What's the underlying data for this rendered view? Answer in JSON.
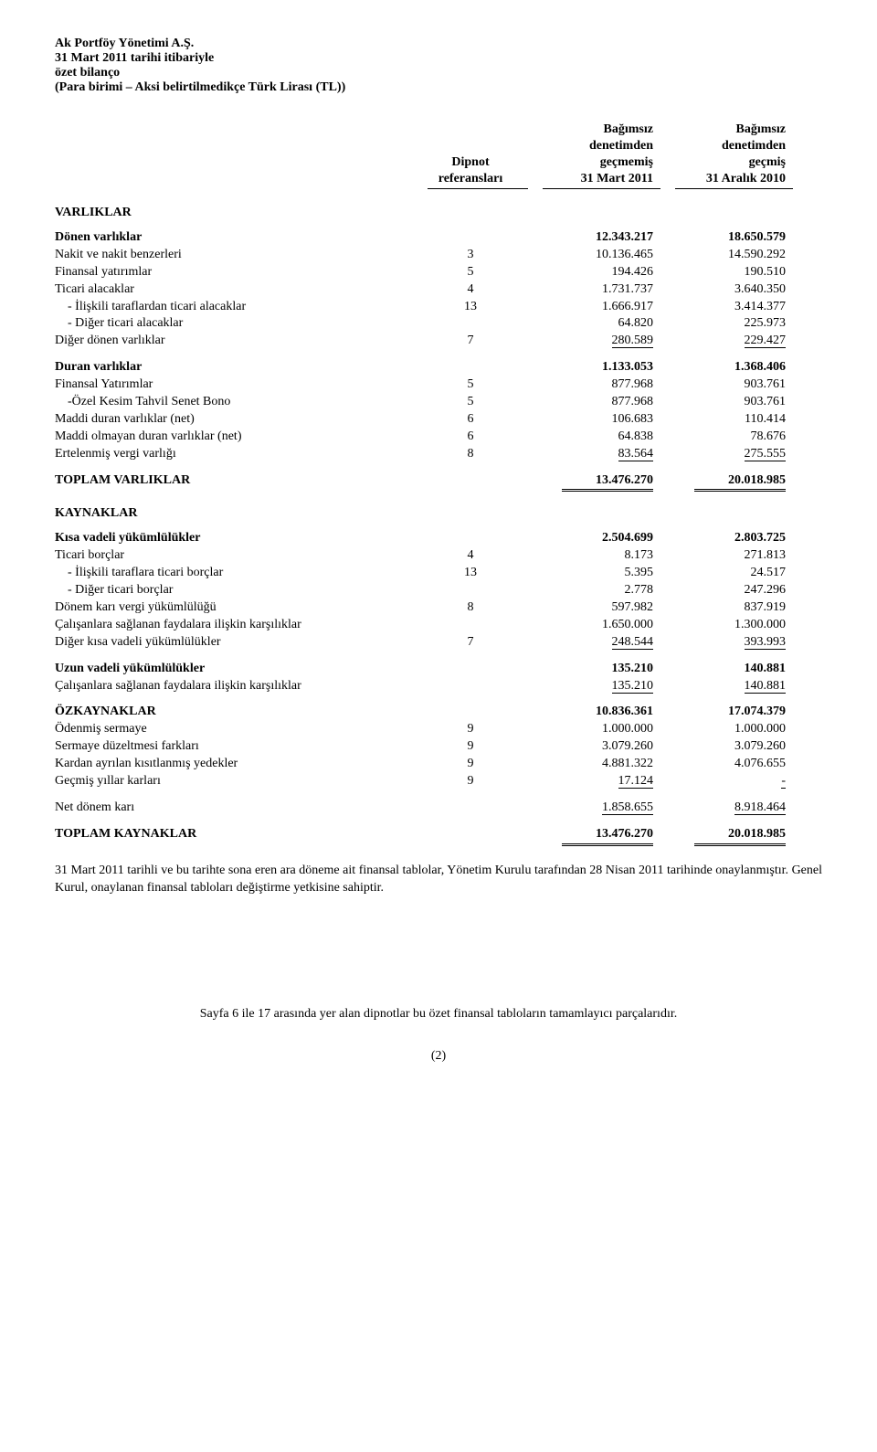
{
  "header": {
    "company": "Ak Portföy Yönetimi A.Ş.",
    "line2": "31 Mart 2011 tarihi itibariyle",
    "line3": "özet bilanço",
    "line4": "(Para birimi – Aksi belirtilmedikçe Türk Lirası (TL))"
  },
  "cols": {
    "note": "Dipnot\nreferansları",
    "c1a": "Bağımsız",
    "c1b": "denetimden",
    "c1c": "geçmemiş",
    "c1d": "31 Mart 2011",
    "c2a": "Bağımsız",
    "c2b": "denetimden",
    "c2c": "geçmiş",
    "c2d": "31 Aralık 2010"
  },
  "varliklar_title": "VARLIKLAR",
  "donen": {
    "title": "Dönen varlıklar",
    "title_v1": "12.343.217",
    "title_v2": "18.650.579",
    "rows": [
      {
        "label": "Nakit ve nakit benzerleri",
        "note": "3",
        "v1": "10.136.465",
        "v2": "14.590.292"
      },
      {
        "label": "Finansal yatırımlar",
        "note": "5",
        "v1": "194.426",
        "v2": "190.510"
      },
      {
        "label": "Ticari alacaklar",
        "note": "4",
        "v1": "1.731.737",
        "v2": "3.640.350"
      },
      {
        "label": "- İlişkili taraflardan ticari alacaklar",
        "indent": true,
        "note": "13",
        "v1": "1.666.917",
        "v2": "3.414.377"
      },
      {
        "label": "- Diğer ticari alacaklar",
        "indent": true,
        "note": "",
        "v1": "64.820",
        "v2": "225.973"
      },
      {
        "label": "Diğer dönen varlıklar",
        "note": "7",
        "v1": "280.589",
        "v2": "229.427",
        "underline": true
      }
    ]
  },
  "duran": {
    "title": "Duran varlıklar",
    "title_v1": "1.133.053",
    "title_v2": "1.368.406",
    "rows": [
      {
        "label": "Finansal Yatırımlar",
        "note": "5",
        "v1": "877.968",
        "v2": "903.761"
      },
      {
        "label": "-Özel Kesim Tahvil Senet Bono",
        "indent": true,
        "note": "5",
        "v1": "877.968",
        "v2": "903.761"
      },
      {
        "label": "Maddi duran varlıklar (net)",
        "note": "6",
        "v1": "106.683",
        "v2": "110.414"
      },
      {
        "label": "Maddi olmayan duran varlıklar (net)",
        "note": "6",
        "v1": "64.838",
        "v2": "78.676"
      },
      {
        "label": "Ertelenmiş vergi varlığı",
        "note": "8",
        "v1": "83.564",
        "v2": "275.555",
        "underline": true
      }
    ]
  },
  "toplam_varliklar": {
    "label": "TOPLAM VARLIKLAR",
    "v1": "13.476.270",
    "v2": "20.018.985"
  },
  "kaynaklar_title": "KAYNAKLAR",
  "kisa": {
    "title": "Kısa vadeli yükümlülükler",
    "title_v1": "2.504.699",
    "title_v2": "2.803.725",
    "rows": [
      {
        "label": "Ticari borçlar",
        "note": "4",
        "v1": "8.173",
        "v2": "271.813"
      },
      {
        "label": "- İlişkili taraflara ticari borçlar",
        "indent": true,
        "note": "13",
        "v1": "5.395",
        "v2": "24.517"
      },
      {
        "label": "- Diğer ticari borçlar",
        "indent": true,
        "note": "",
        "v1": "2.778",
        "v2": "247.296"
      },
      {
        "label": "Dönem karı vergi yükümlülüğü",
        "note": "8",
        "v1": "597.982",
        "v2": "837.919"
      },
      {
        "label": "Çalışanlara sağlanan faydalara ilişkin karşılıklar",
        "note": "",
        "v1": "1.650.000",
        "v2": "1.300.000"
      },
      {
        "label": "Diğer kısa vadeli yükümlülükler",
        "note": "7",
        "v1": "248.544",
        "v2": "393.993",
        "underline": true
      }
    ]
  },
  "uzun": {
    "title": "Uzun vadeli yükümlülükler",
    "title_v1": "135.210",
    "title_v2": "140.881",
    "rows": [
      {
        "label": "Çalışanlara sağlanan faydalara ilişkin karşılıklar",
        "note": "",
        "v1": "135.210",
        "v2": "140.881",
        "underline": true
      }
    ]
  },
  "ozkaynaklar": {
    "title": "ÖZKAYNAKLAR",
    "title_v1": "10.836.361",
    "title_v2": "17.074.379",
    "rows": [
      {
        "label": "Ödenmiş sermaye",
        "note": "9",
        "v1": "1.000.000",
        "v2": "1.000.000"
      },
      {
        "label": "Sermaye düzeltmesi farkları",
        "note": "9",
        "v1": "3.079.260",
        "v2": "3.079.260"
      },
      {
        "label": "Kardan ayrılan kısıtlanmış yedekler",
        "note": "9",
        "v1": "4.881.322",
        "v2": "4.076.655"
      },
      {
        "label": "Geçmiş yıllar karları",
        "note": "9",
        "v1": "17.124",
        "v2": "-",
        "underline": true
      }
    ]
  },
  "net_donem": {
    "label": "Net dönem karı",
    "v1": "1.858.655",
    "v2": "8.918.464"
  },
  "toplam_kaynaklar": {
    "label": "TOPLAM KAYNAKLAR",
    "v1": "13.476.270",
    "v2": "20.018.985"
  },
  "para": "31 Mart 2011 tarihli ve bu tarihte sona eren ara döneme ait finansal tablolar, Yönetim Kurulu tarafından 28 Nisan 2011 tarihinde onaylanmıştır. Genel Kurul, onaylanan finansal tabloları değiştirme yetkisine sahiptir.",
  "footer": "Sayfa 6 ile 17 arasında yer alan dipnotlar bu özet finansal tabloların tamamlayıcı parçalarıdır.",
  "page_num": "(2)"
}
